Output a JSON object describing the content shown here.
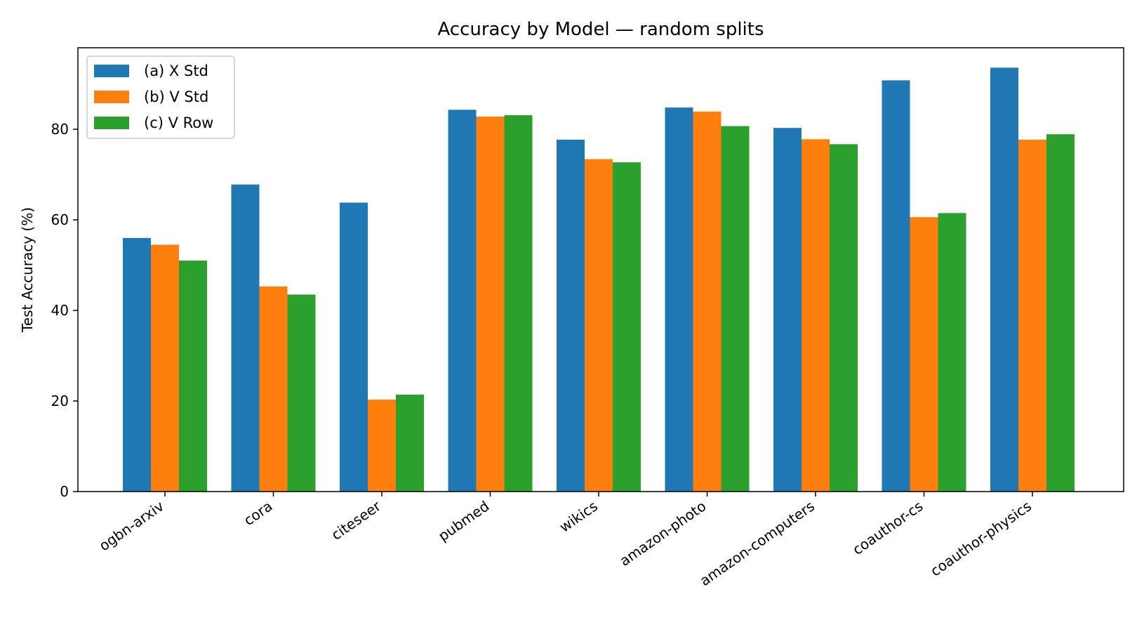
{
  "chart_data": {
    "type": "bar",
    "title": "Accuracy by Model — random splits",
    "xlabel": "",
    "ylabel": "Test Accuracy (%)",
    "ylim": [
      0,
      98
    ],
    "yticks": [
      0,
      20,
      40,
      60,
      80
    ],
    "grid": false,
    "legend_position": "top-left",
    "categories": [
      "ogbn-arxiv",
      "cora",
      "citeseer",
      "pubmed",
      "wikics",
      "amazon-photo",
      "amazon-computers",
      "coauthor-cs",
      "coauthor-physics"
    ],
    "series": [
      {
        "name": "(a) X Std",
        "color": "#1f77b4",
        "values": [
          56.0,
          67.8,
          63.8,
          84.3,
          77.7,
          84.8,
          80.3,
          90.8,
          93.6
        ]
      },
      {
        "name": "(b) V Std",
        "color": "#ff7f0e",
        "values": [
          54.5,
          45.3,
          20.3,
          82.8,
          73.4,
          83.9,
          77.8,
          60.6,
          77.7
        ]
      },
      {
        "name": "(c) V Row",
        "color": "#2ca02c",
        "values": [
          51.0,
          43.5,
          21.4,
          83.1,
          72.7,
          80.7,
          76.7,
          61.5,
          78.9
        ]
      }
    ]
  }
}
